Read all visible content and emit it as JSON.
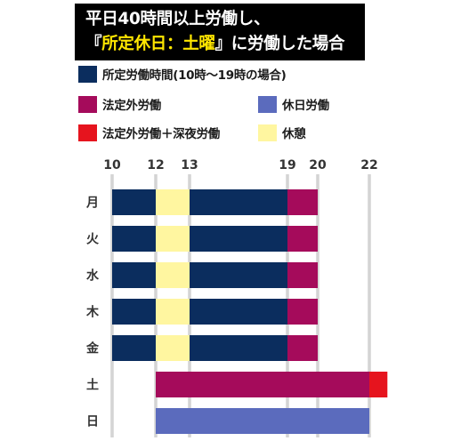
{
  "title": {
    "line1": "平日40時間以上労働し、",
    "line2_pre": "『",
    "line2_hl": "所定休日：土曜",
    "line2_post": "』に労働した場合"
  },
  "legend": [
    {
      "label": "所定労働時間(10時〜19時の場合)",
      "color": "#0b2d5e"
    },
    {
      "label": "法定外労働",
      "color": "#a50b5b"
    },
    {
      "label": "休日労働",
      "color": "#5b6bbd"
    },
    {
      "label": "法定外労働＋深夜労働",
      "color": "#e6141e"
    },
    {
      "label": "休憩",
      "color": "#fff6a0"
    }
  ],
  "chart_data": {
    "type": "bar",
    "orientation": "horizontal-timeline",
    "x_ticks": [
      "10",
      "12",
      "13",
      "19",
      "20",
      "22"
    ],
    "xlim": [
      10,
      22.7
    ],
    "days": [
      "月",
      "火",
      "水",
      "木",
      "金",
      "土",
      "日"
    ],
    "series": [
      {
        "name": "所定労働時間(10時〜19時の場合)",
        "color": "#0b2d5e",
        "segments": [
          {
            "day": "月",
            "start": 10,
            "end": 12
          },
          {
            "day": "月",
            "start": 13,
            "end": 19
          },
          {
            "day": "火",
            "start": 10,
            "end": 12
          },
          {
            "day": "火",
            "start": 13,
            "end": 19
          },
          {
            "day": "水",
            "start": 10,
            "end": 12
          },
          {
            "day": "水",
            "start": 13,
            "end": 19
          },
          {
            "day": "木",
            "start": 10,
            "end": 12
          },
          {
            "day": "木",
            "start": 13,
            "end": 19
          },
          {
            "day": "金",
            "start": 10,
            "end": 12
          },
          {
            "day": "金",
            "start": 13,
            "end": 19
          }
        ]
      },
      {
        "name": "休憩",
        "color": "#fff6a0",
        "segments": [
          {
            "day": "月",
            "start": 12,
            "end": 13
          },
          {
            "day": "火",
            "start": 12,
            "end": 13
          },
          {
            "day": "水",
            "start": 12,
            "end": 13
          },
          {
            "day": "木",
            "start": 12,
            "end": 13
          },
          {
            "day": "金",
            "start": 12,
            "end": 13
          }
        ]
      },
      {
        "name": "法定外労働",
        "color": "#a50b5b",
        "segments": [
          {
            "day": "月",
            "start": 19,
            "end": 20
          },
          {
            "day": "火",
            "start": 19,
            "end": 20
          },
          {
            "day": "水",
            "start": 19,
            "end": 20
          },
          {
            "day": "木",
            "start": 19,
            "end": 20
          },
          {
            "day": "金",
            "start": 19,
            "end": 20
          },
          {
            "day": "土",
            "start": 12,
            "end": 22
          }
        ]
      },
      {
        "name": "法定外労働＋深夜労働",
        "color": "#e6141e",
        "segments": [
          {
            "day": "土",
            "start": 22,
            "end": 22.7
          }
        ]
      },
      {
        "name": "休日労働",
        "color": "#5b6bbd",
        "segments": [
          {
            "day": "日",
            "start": 12,
            "end": 22
          }
        ]
      }
    ]
  }
}
